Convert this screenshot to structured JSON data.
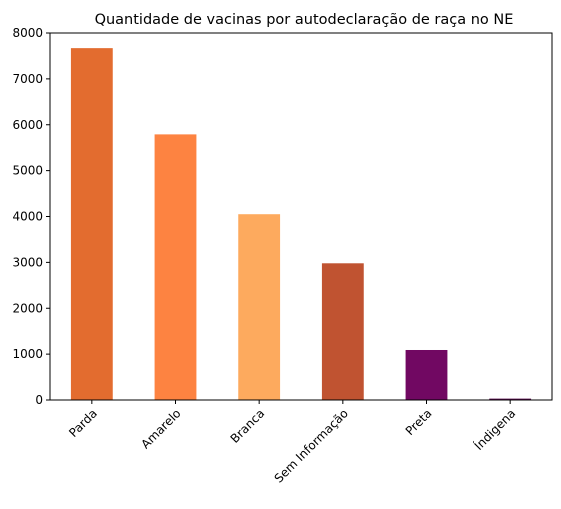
{
  "chart_data": {
    "type": "bar",
    "title": "Quantidade de vacinas por autodeclaração de raça no NE",
    "xlabel": "",
    "ylabel": "",
    "categories": [
      "Parda",
      "Amarelo",
      "Branca",
      "Sem Informação",
      "Preta",
      "Índigena"
    ],
    "values": [
      7670,
      5790,
      4050,
      2980,
      1090,
      30
    ],
    "colors": [
      "#e36c2f",
      "#fd8341",
      "#fdaa5e",
      "#c05331",
      "#710862",
      "#5a0a4e"
    ],
    "ylim": [
      0,
      8000
    ],
    "yticks": [
      0,
      1000,
      2000,
      3000,
      4000,
      5000,
      6000,
      7000,
      8000
    ],
    "ytick_labels": [
      "0",
      "1000",
      "2000",
      "3000",
      "4000",
      "5000",
      "6000",
      "7000",
      "8000"
    ],
    "grid": false,
    "legend": "none"
  }
}
